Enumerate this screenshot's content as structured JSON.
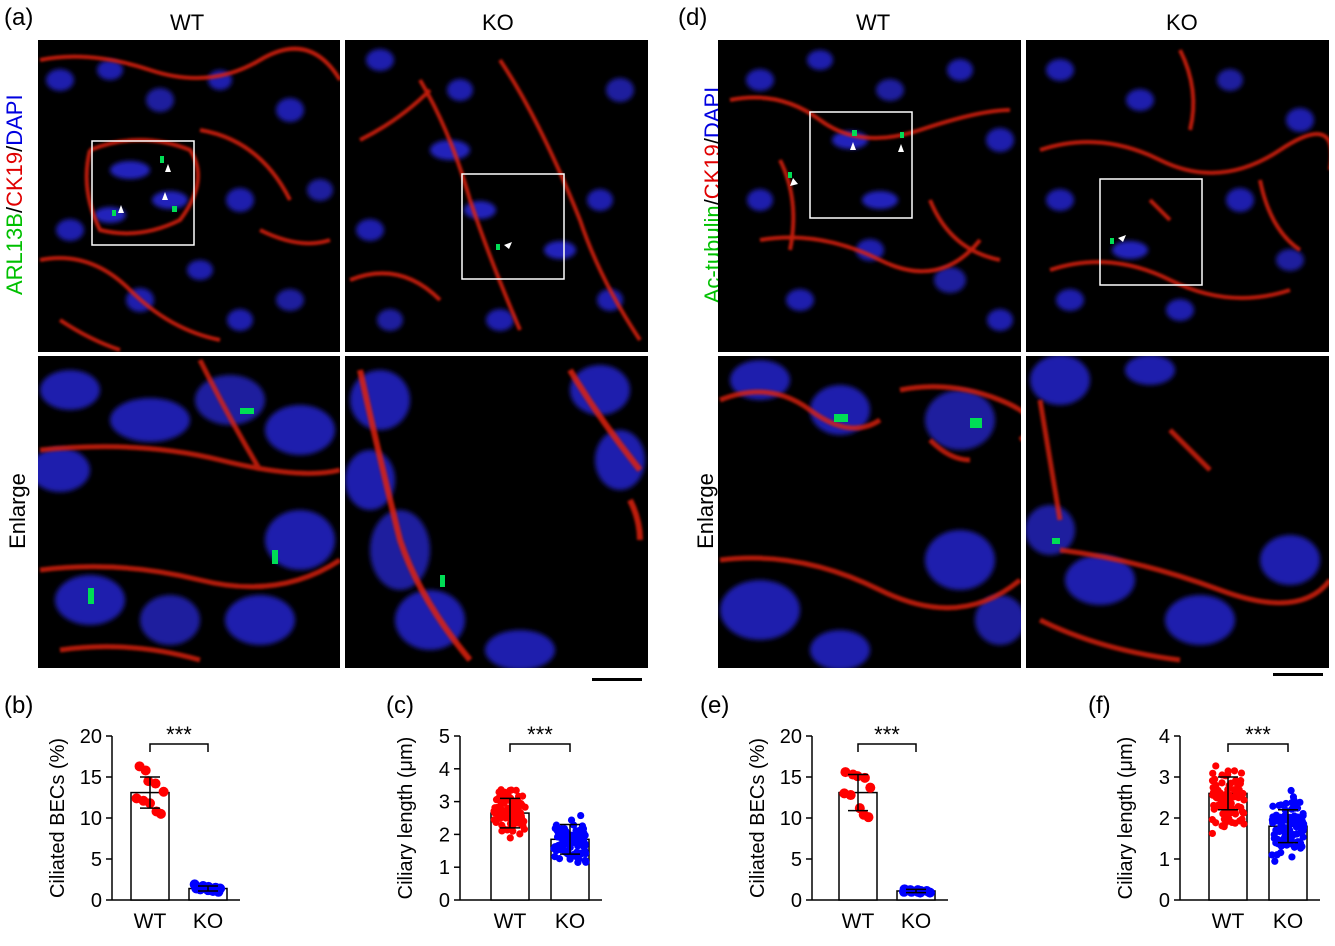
{
  "panels": {
    "a": "(a)",
    "b": "(b)",
    "c": "(c)",
    "d": "(d)",
    "e": "(e)",
    "f": "(f)"
  },
  "left_figure": {
    "col_wt": "WT",
    "col_ko": "KO",
    "stain": [
      "ARL13B",
      "/",
      "CK19",
      "/",
      "DAPI"
    ],
    "row2_label": "Enlarge"
  },
  "right_figure": {
    "col_wt": "WT",
    "col_ko": "KO",
    "stain": [
      "Ac-tubulin",
      "/",
      "CK19",
      "/",
      "DAPI"
    ],
    "row2_label": "Enlarge"
  },
  "colors": {
    "wt": "#ff0000",
    "ko": "#0000ff",
    "cilia": "#00cc44",
    "ck19": "#e02010",
    "dapi": "#1818e0"
  },
  "chart_data": [
    {
      "id": "b",
      "type": "bar",
      "categories": [
        "WT",
        "KO"
      ],
      "values": [
        13.1,
        1.4
      ],
      "errors": [
        1.9,
        0.3
      ],
      "points": [
        [
          16.3,
          15.8,
          14.5,
          14.2,
          13.2,
          12.4,
          12.1,
          11.8,
          10.8,
          10.5
        ],
        [
          1.9,
          1.7,
          1.6,
          1.5,
          1.4,
          1.4,
          1.3,
          1.2,
          1.1,
          1.0
        ]
      ],
      "ylabel": "Ciliated BECs (%)",
      "ylim": [
        0,
        20
      ],
      "yticks": [
        0,
        5,
        10,
        15,
        20
      ],
      "significance": "***"
    },
    {
      "id": "c",
      "type": "bar",
      "categories": [
        "WT",
        "KO"
      ],
      "values": [
        2.65,
        1.85
      ],
      "errors": [
        0.45,
        0.45
      ],
      "scatter": {
        "n": 100,
        "wt_range": [
          1.6,
          3.8
        ],
        "ko_range": [
          0.8,
          2.8
        ]
      },
      "ylabel": "Ciliary length (μm)",
      "ylim": [
        0,
        5
      ],
      "yticks": [
        0,
        1,
        2,
        3,
        4,
        5
      ],
      "significance": "***"
    },
    {
      "id": "e",
      "type": "bar",
      "categories": [
        "WT",
        "KO"
      ],
      "values": [
        13.1,
        1.1
      ],
      "errors": [
        2.2,
        0.2
      ],
      "points": [
        [
          15.6,
          15.3,
          15.1,
          14.9,
          13.7,
          13.0,
          12.8,
          11.2,
          10.4,
          10.1
        ],
        [
          1.3,
          1.2,
          1.2,
          1.1,
          1.1,
          1.0,
          1.0,
          1.0,
          0.9,
          0.9
        ]
      ],
      "ylabel": "Ciliated BECs (%)",
      "ylim": [
        0,
        20
      ],
      "yticks": [
        0,
        5,
        10,
        15,
        20
      ],
      "significance": "***"
    },
    {
      "id": "f",
      "type": "bar",
      "categories": [
        "WT",
        "KO"
      ],
      "values": [
        2.6,
        1.8
      ],
      "errors": [
        0.4,
        0.4
      ],
      "scatter": {
        "n": 100,
        "wt_range": [
          1.4,
          3.5
        ],
        "ko_range": [
          0.7,
          2.8
        ]
      },
      "ylabel": "Ciliary length (μm)",
      "ylim": [
        0,
        4
      ],
      "yticks": [
        0,
        1,
        2,
        3,
        4
      ],
      "significance": "***"
    }
  ]
}
